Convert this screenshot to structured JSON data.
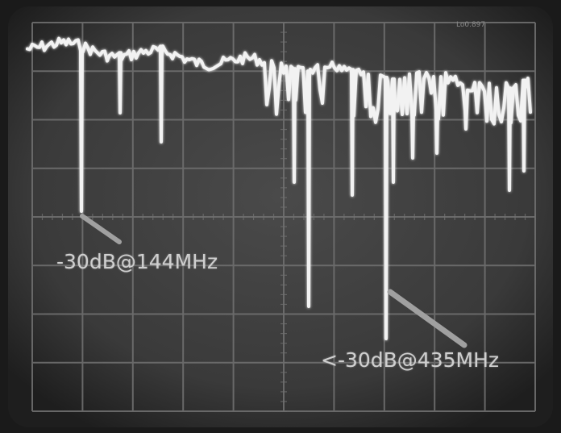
{
  "image": {
    "description_type": "oscilloscope-spectrum-photo",
    "screen_color": "#3a3a3a",
    "trace_color": "#f2f2f2",
    "grid_color": "#7a7a7a",
    "pointer_color": "#9a9a9a"
  },
  "annotations": {
    "low_band": "-30dB@144MHz",
    "high_band": "<-30dB@435MHz"
  },
  "brand_text": "Lo0.897"
}
